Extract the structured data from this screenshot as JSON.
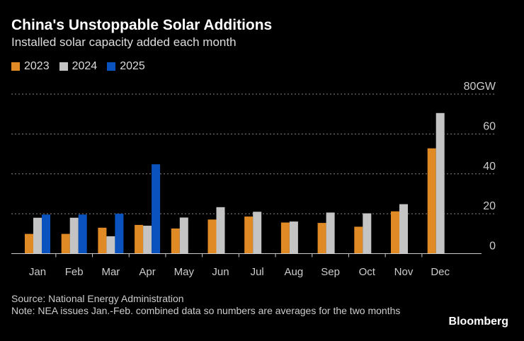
{
  "chart_data": {
    "type": "bar",
    "title": "China's Unstoppable Solar Additions",
    "subtitle": "Installed solar capacity added each month",
    "categories": [
      "Jan",
      "Feb",
      "Mar",
      "Apr",
      "May",
      "Jun",
      "Jul",
      "Aug",
      "Sep",
      "Oct",
      "Nov",
      "Dec"
    ],
    "series": [
      {
        "name": "2023",
        "color": "#e08a25",
        "values": [
          9.9,
          9.9,
          13,
          14.4,
          12.6,
          17.1,
          18.6,
          15.6,
          15.4,
          13.5,
          21.2,
          52.8
        ]
      },
      {
        "name": "2024",
        "color": "#c4c4c4",
        "values": [
          18,
          18,
          8.7,
          14,
          18.1,
          23.3,
          21,
          16.1,
          20.6,
          20.2,
          24.8,
          70.5
        ]
      },
      {
        "name": "2025",
        "color": "#0a52be",
        "values": [
          19.6,
          19.6,
          20,
          44.8,
          null,
          null,
          null,
          null,
          null,
          null,
          null,
          null
        ]
      }
    ],
    "ylim": [
      0,
      80
    ],
    "yticks": [
      "0",
      "20",
      "40",
      "60",
      "80GW"
    ],
    "grid": true,
    "legend": "top-left"
  },
  "footer": {
    "source": "Source: National Energy Administration",
    "note": "Note: NEA issues Jan.-Feb. combined data so numbers are averages for the two months"
  },
  "brand": "Bloomberg"
}
